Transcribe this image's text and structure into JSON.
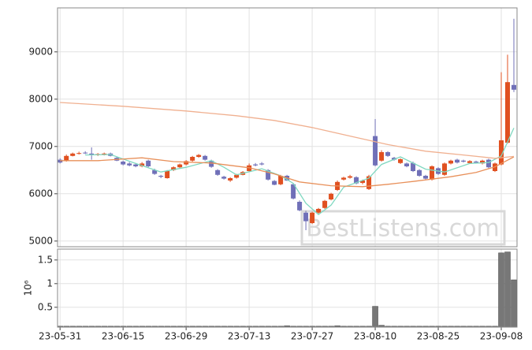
{
  "chart_data": [
    {
      "type": "candlestick",
      "x": [
        0,
        1,
        2,
        3,
        4,
        5,
        6,
        7,
        8,
        9,
        10,
        11,
        12,
        13,
        14,
        15,
        16,
        17,
        18,
        19,
        20,
        21,
        22,
        23,
        24,
        25,
        26,
        27,
        28,
        29,
        30,
        31,
        32,
        33,
        34,
        35,
        36,
        37,
        38,
        39,
        40,
        41,
        42,
        43,
        44,
        45,
        46,
        47,
        48,
        49,
        50,
        51,
        52,
        53,
        54,
        55,
        56,
        57,
        58,
        59,
        60,
        61,
        62,
        63,
        64,
        65,
        66,
        67,
        68,
        69,
        70,
        71,
        72
      ],
      "open": [
        6720,
        6700,
        6800,
        6850,
        6870,
        6850,
        6820,
        6830,
        6850,
        6760,
        6680,
        6640,
        6620,
        6580,
        6700,
        6500,
        6380,
        6330,
        6500,
        6560,
        6620,
        6700,
        6780,
        6800,
        6700,
        6500,
        6360,
        6280,
        6340,
        6400,
        6480,
        6620,
        6640,
        6500,
        6270,
        6200,
        6380,
        6200,
        5830,
        5600,
        5380,
        5600,
        5700,
        5880,
        6080,
        6300,
        6340,
        6350,
        6230,
        6100,
        7220,
        6700,
        6880,
        6760,
        6650,
        6640,
        6650,
        6500,
        6380,
        6300,
        6540,
        6400,
        6640,
        6720,
        6700,
        6650,
        6680,
        6640,
        6720,
        6480,
        6620,
        7080,
        8300
      ],
      "high": [
        6750,
        6830,
        6870,
        6890,
        6900,
        6980,
        6860,
        6870,
        6870,
        6780,
        6700,
        6670,
        6650,
        6670,
        6720,
        6530,
        6400,
        6500,
        6580,
        6640,
        6710,
        6800,
        6840,
        6820,
        6720,
        6520,
        6380,
        6350,
        6420,
        6480,
        6640,
        6650,
        6670,
        6520,
        6290,
        6400,
        6400,
        6220,
        5860,
        5640,
        5620,
        5700,
        5870,
        6020,
        6280,
        6360,
        6400,
        6370,
        6300,
        6400,
        7580,
        6920,
        6900,
        6780,
        6750,
        6660,
        6680,
        6520,
        6400,
        6600,
        6560,
        6660,
        6720,
        6740,
        6720,
        6710,
        6700,
        6720,
        6740,
        6660,
        8570,
        8940,
        9700
      ],
      "low": [
        6640,
        6680,
        6790,
        6830,
        6840,
        6720,
        6800,
        6810,
        6790,
        6690,
        6600,
        6580,
        6560,
        6560,
        6560,
        6400,
        6330,
        6320,
        6480,
        6540,
        6600,
        6680,
        6760,
        6700,
        6550,
        6380,
        6300,
        6250,
        6320,
        6390,
        6470,
        6580,
        6600,
        6280,
        6180,
        6180,
        6270,
        5880,
        5630,
        5230,
        5360,
        5580,
        5680,
        5860,
        6060,
        6280,
        6320,
        6200,
        6200,
        6080,
        6580,
        6680,
        6780,
        6700,
        6630,
        6560,
        6460,
        6360,
        6300,
        6280,
        6400,
        6380,
        6620,
        6640,
        6660,
        6630,
        6640,
        6620,
        6540,
        6460,
        6600,
        7060,
        8150
      ],
      "close": [
        6660,
        6800,
        6850,
        6860,
        6860,
        6830,
        6840,
        6850,
        6800,
        6700,
        6620,
        6600,
        6580,
        6640,
        6580,
        6420,
        6360,
        6480,
        6560,
        6620,
        6690,
        6780,
        6820,
        6720,
        6570,
        6400,
        6320,
        6330,
        6400,
        6460,
        6600,
        6600,
        6620,
        6300,
        6190,
        6380,
        6280,
        5900,
        5650,
        5420,
        5600,
        5680,
        5850,
        6000,
        6250,
        6340,
        6370,
        6220,
        6280,
        6370,
        6600,
        6880,
        6800,
        6720,
        6730,
        6580,
        6480,
        6380,
        6320,
        6580,
        6420,
        6640,
        6700,
        6660,
        6680,
        6690,
        6660,
        6700,
        6560,
        6640,
        7130,
        8360,
        8200
      ],
      "up_color": "#e05020",
      "down_color": "#7070b8",
      "overlays": [
        {
          "color": "#7fd8c0",
          "x": [
            4,
            8,
            12,
            16,
            20,
            24,
            26,
            28,
            32,
            35,
            37,
            39,
            41,
            43,
            45,
            49,
            51,
            54,
            58,
            61,
            65,
            68,
            70,
            72
          ],
          "values": [
            6820,
            6830,
            6640,
            6460,
            6560,
            6700,
            6560,
            6400,
            6530,
            6380,
            6220,
            5800,
            5560,
            5760,
            6140,
            6330,
            6620,
            6780,
            6520,
            6460,
            6640,
            6660,
            6800,
            7390
          ]
        },
        {
          "color": "#e8905a",
          "x": [
            0,
            6,
            13,
            18,
            24,
            30,
            34,
            38,
            43,
            48,
            52,
            56,
            62,
            66,
            69,
            72
          ],
          "values": [
            6700,
            6700,
            6760,
            6680,
            6650,
            6550,
            6420,
            6250,
            6170,
            6150,
            6200,
            6260,
            6360,
            6450,
            6570,
            6780
          ]
        },
        {
          "color": "#f0b090",
          "x": [
            0,
            10,
            20,
            28,
            34,
            40,
            46,
            52,
            58,
            64,
            69,
            72
          ],
          "values": [
            7930,
            7850,
            7750,
            7650,
            7550,
            7400,
            7220,
            7040,
            6900,
            6820,
            6750,
            6790
          ]
        }
      ],
      "xlim": [
        -0.4,
        72.5
      ],
      "xticks": [
        0,
        10,
        20,
        30,
        40,
        50,
        60,
        70
      ],
      "ylim": [
        4880,
        9930
      ],
      "yticks": [
        5000,
        6000,
        7000,
        8000,
        9000
      ],
      "grid": true,
      "watermark": "BestListens.com"
    },
    {
      "type": "bar",
      "x": [
        0,
        1,
        2,
        3,
        4,
        5,
        6,
        7,
        8,
        9,
        10,
        11,
        12,
        13,
        14,
        15,
        16,
        17,
        18,
        19,
        20,
        21,
        22,
        23,
        24,
        25,
        26,
        27,
        28,
        29,
        30,
        31,
        32,
        33,
        34,
        35,
        36,
        37,
        38,
        39,
        40,
        41,
        42,
        43,
        44,
        45,
        46,
        47,
        48,
        49,
        50,
        51,
        52,
        53,
        54,
        55,
        56,
        57,
        58,
        59,
        60,
        61,
        62,
        63,
        64,
        65,
        66,
        67,
        68,
        69,
        70,
        71,
        72
      ],
      "values": [
        0.1,
        0.1,
        0.1,
        0.1,
        0.1,
        0.1,
        0.1,
        0.1,
        0.1,
        0.1,
        0.1,
        0.1,
        0.1,
        0.1,
        0.1,
        0.1,
        0.1,
        0.1,
        0.1,
        0.1,
        0.1,
        0.1,
        0.1,
        0.1,
        0.1,
        0.1,
        0.1,
        0.1,
        0.1,
        0.1,
        0.1,
        0.1,
        0.1,
        0.1,
        0.1,
        0.1,
        0.11,
        0.1,
        0.1,
        0.1,
        0.1,
        0.1,
        0.1,
        0.1,
        0.11,
        0.1,
        0.1,
        0.1,
        0.1,
        0.1,
        0.52,
        0.12,
        0.1,
        0.1,
        0.1,
        0.1,
        0.1,
        0.1,
        0.1,
        0.1,
        0.1,
        0.1,
        0.1,
        0.1,
        0.1,
        0.1,
        0.1,
        0.1,
        0.1,
        0.1,
        1.65,
        1.67,
        1.08
      ],
      "color": "#777777",
      "y_label": "10⁶",
      "xlim": [
        -0.4,
        72.5
      ],
      "xticks": [
        {
          "value": 0,
          "label": "23-05-31"
        },
        {
          "value": 10,
          "label": "23-06-15"
        },
        {
          "value": 20,
          "label": "23-06-29"
        },
        {
          "value": 30,
          "label": "23-07-13"
        },
        {
          "value": 40,
          "label": "23-07-27"
        },
        {
          "value": 50,
          "label": "23-08-10"
        },
        {
          "value": 60,
          "label": "23-08-25"
        },
        {
          "value": 70,
          "label": "23-09-08"
        }
      ],
      "ylim": [
        0.08,
        1.73
      ],
      "yticks": [
        0.5,
        1.0,
        1.5
      ],
      "grid": true
    }
  ]
}
